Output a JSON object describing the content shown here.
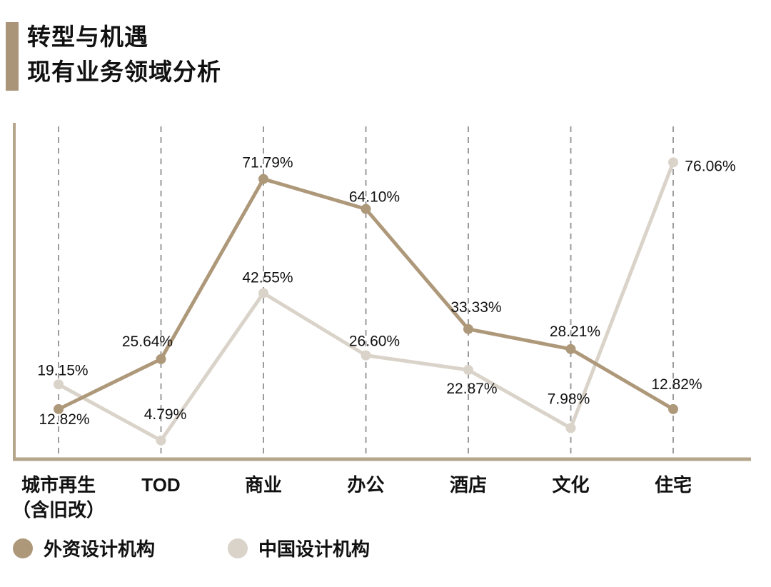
{
  "header": {
    "title_line1": "转型与机遇",
    "title_line2": "现有业务领域分析"
  },
  "chart_data": {
    "type": "line",
    "title": "现有业务领域分析",
    "categories": [
      "城市再生\n（含旧改）",
      "TOD",
      "商业",
      "办公",
      "酒店",
      "文化",
      "住宅"
    ],
    "series": [
      {
        "name": "外资设计机构",
        "color": "#ae987a",
        "values": [
          12.82,
          25.64,
          71.79,
          64.1,
          33.33,
          28.21,
          12.82
        ],
        "label_offsets": [
          [
            8,
            21
          ],
          [
            -19,
            -18
          ],
          [
            6,
            -16
          ],
          [
            12,
            -10
          ],
          [
            11,
            -24
          ],
          [
            6,
            -18
          ],
          [
            5,
            -28
          ]
        ]
      },
      {
        "name": "中国设计机构",
        "color": "#d9d3c9",
        "values": [
          19.15,
          4.79,
          42.55,
          26.6,
          22.87,
          7.98,
          76.06
        ],
        "label_offsets": [
          [
            6,
            -13
          ],
          [
            6,
            -30
          ],
          [
            6,
            -15
          ],
          [
            12,
            -13
          ],
          [
            5,
            33
          ],
          [
            -3,
            -34
          ],
          [
            52,
            12
          ]
        ]
      }
    ],
    "value_label_suffix": "%",
    "value_label_decimals": 2,
    "ylim": [
      0,
      86
    ],
    "grid": "vertical-dashed",
    "legend_position": "bottom-left",
    "colors": {
      "axis": "#b5a58a",
      "gridline": "#9b9b9b",
      "label_text": "#111111",
      "accent_bar": "#ab9579"
    }
  }
}
